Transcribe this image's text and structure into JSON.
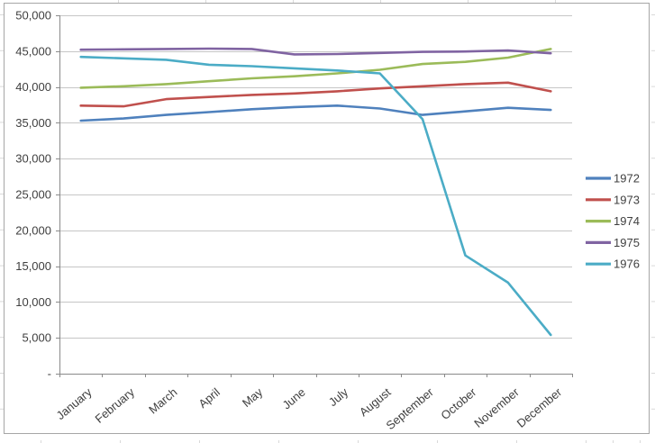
{
  "chart_data": {
    "type": "line",
    "title": "",
    "xlabel": "",
    "ylabel": "",
    "categories": [
      "January",
      "February",
      "March",
      "April",
      "May",
      "June",
      "July",
      "August",
      "September",
      "October",
      "November",
      "December"
    ],
    "series": [
      {
        "name": "1972",
        "color": "#4F81BD",
        "values": [
          35300,
          35600,
          36100,
          36500,
          36900,
          37200,
          37400,
          37000,
          36100,
          36600,
          37100,
          36800
        ]
      },
      {
        "name": "1973",
        "color": "#C0504D",
        "values": [
          37400,
          37300,
          38300,
          38600,
          38900,
          39100,
          39400,
          39800,
          40100,
          40400,
          40600,
          39400
        ]
      },
      {
        "name": "1974",
        "color": "#9BBB59",
        "values": [
          39900,
          40100,
          40400,
          40800,
          41200,
          41500,
          41900,
          42400,
          43200,
          43500,
          44100,
          45300
        ]
      },
      {
        "name": "1975",
        "color": "#8064A2",
        "values": [
          45200,
          45250,
          45300,
          45350,
          45300,
          44550,
          44600,
          44750,
          44900,
          44950,
          45100,
          44700
        ]
      },
      {
        "name": "1976",
        "color": "#4BACC6",
        "values": [
          44200,
          44000,
          43800,
          43100,
          42900,
          42600,
          42300,
          41900,
          35500,
          16500,
          12700,
          5400
        ]
      }
    ],
    "ylim": [
      0,
      50000
    ],
    "ytick_step": 5000,
    "ytick_labels": [
      "-",
      "5,000",
      "10,000",
      "15,000",
      "20,000",
      "25,000",
      "30,000",
      "35,000",
      "40,000",
      "45,000",
      "50,000"
    ],
    "grid": true,
    "legend_position": "right"
  },
  "style": {
    "background": "#FFFFFF",
    "chart_border": "#A6A6A6",
    "worksheet_line": "#D9D9D9",
    "gridline": "#C6C6C6",
    "axis": "#8A8A8A",
    "label_color": "#3F3F3F"
  }
}
